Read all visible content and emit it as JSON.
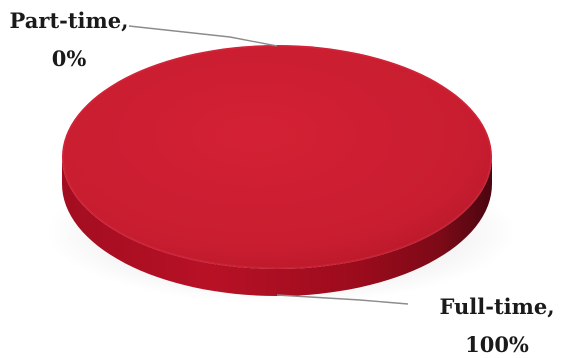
{
  "chart_data": {
    "type": "pie",
    "style": "3d",
    "title": "",
    "slices": [
      {
        "label": "Part-time",
        "value": 0,
        "value_label": "0%",
        "color": "#c8102e"
      },
      {
        "label": "Full-time",
        "value": 100,
        "value_label": "100%",
        "color": "#c8102e"
      }
    ],
    "legend": "none",
    "data_labels": "outside-with-leader-lines"
  }
}
